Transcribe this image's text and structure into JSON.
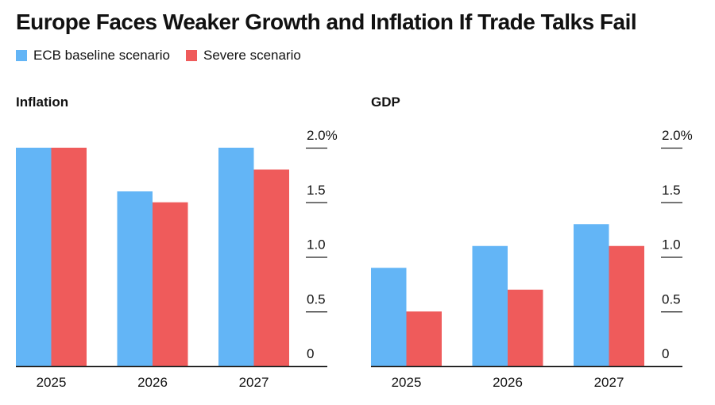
{
  "title": "Europe Faces Weaker Growth and Inflation If Trade Talks Fail",
  "legend": [
    {
      "label": "ECB baseline scenario",
      "color": "#63b5f6"
    },
    {
      "label": "Severe scenario",
      "color": "#ef5b5b"
    }
  ],
  "chart_data": [
    {
      "type": "bar",
      "title": "Inflation",
      "categories": [
        "2025",
        "2026",
        "2027"
      ],
      "series": [
        {
          "name": "ECB baseline scenario",
          "values": [
            2.0,
            1.6,
            2.0
          ]
        },
        {
          "name": "Severe scenario",
          "values": [
            2.0,
            1.5,
            1.8
          ]
        }
      ],
      "ylim": [
        0,
        2.0
      ],
      "yticks": [
        0,
        0.5,
        1.0,
        1.5,
        2.0
      ],
      "ytick_labels": [
        "0",
        "0.5",
        "1.0",
        "1.5",
        "2.0%"
      ],
      "axis_position": "right",
      "grid": false
    },
    {
      "type": "bar",
      "title": "GDP",
      "categories": [
        "2025",
        "2026",
        "2027"
      ],
      "series": [
        {
          "name": "ECB baseline scenario",
          "values": [
            0.9,
            1.1,
            1.3
          ]
        },
        {
          "name": "Severe scenario",
          "values": [
            0.5,
            0.7,
            1.1
          ]
        }
      ],
      "ylim": [
        0,
        2.0
      ],
      "yticks": [
        0,
        0.5,
        1.0,
        1.5,
        2.0
      ],
      "ytick_labels": [
        "0",
        "0.5",
        "1.0",
        "1.5",
        "2.0%"
      ],
      "axis_position": "right",
      "grid": false
    }
  ]
}
